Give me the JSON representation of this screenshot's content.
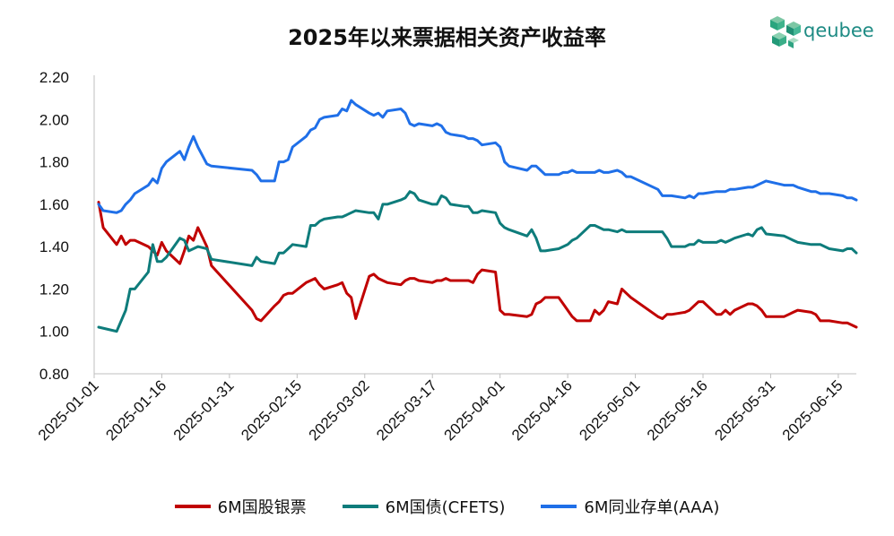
{
  "chart_data": {
    "type": "line",
    "title": "2025年以来票据相关资产收益率",
    "brand": "qeubee",
    "xlabel": "",
    "ylabel": "",
    "ylim": [
      0.8,
      2.2
    ],
    "xlim": [
      "2025-01-01",
      "2025-06-19"
    ],
    "y_ticks": [
      "0.80",
      "1.00",
      "1.20",
      "1.40",
      "1.60",
      "1.80",
      "2.00",
      "2.20"
    ],
    "x_ticks": [
      "2025-01-01",
      "2025-01-16",
      "2025-01-31",
      "2025-02-15",
      "2025-03-02",
      "2025-03-17",
      "2025-04-01",
      "2025-04-16",
      "2025-05-01",
      "2025-05-16",
      "2025-05-31",
      "2025-06-15"
    ],
    "grid": false,
    "legend_position": "bottom",
    "series": [
      {
        "name": "6M国股银票",
        "color": "#c00000",
        "x": [
          "2025-01-02",
          "2025-01-03",
          "2025-01-06",
          "2025-01-07",
          "2025-01-08",
          "2025-01-09",
          "2025-01-10",
          "2025-01-13",
          "2025-01-14",
          "2025-01-15",
          "2025-01-16",
          "2025-01-17",
          "2025-01-20",
          "2025-01-21",
          "2025-01-22",
          "2025-01-23",
          "2025-01-24",
          "2025-01-26",
          "2025-01-27",
          "2025-02-05",
          "2025-02-06",
          "2025-02-07",
          "2025-02-10",
          "2025-02-11",
          "2025-02-12",
          "2025-02-13",
          "2025-02-14",
          "2025-02-17",
          "2025-02-18",
          "2025-02-19",
          "2025-02-20",
          "2025-02-21",
          "2025-02-24",
          "2025-02-25",
          "2025-02-26",
          "2025-02-27",
          "2025-02-28",
          "2025-03-03",
          "2025-03-04",
          "2025-03-05",
          "2025-03-06",
          "2025-03-07",
          "2025-03-10",
          "2025-03-11",
          "2025-03-12",
          "2025-03-13",
          "2025-03-14",
          "2025-03-17",
          "2025-03-18",
          "2025-03-19",
          "2025-03-20",
          "2025-03-21",
          "2025-03-24",
          "2025-03-25",
          "2025-03-26",
          "2025-03-27",
          "2025-03-28",
          "2025-03-31",
          "2025-04-01",
          "2025-04-02",
          "2025-04-03",
          "2025-04-07",
          "2025-04-08",
          "2025-04-09",
          "2025-04-10",
          "2025-04-11",
          "2025-04-14",
          "2025-04-15",
          "2025-04-16",
          "2025-04-17",
          "2025-04-18",
          "2025-04-21",
          "2025-04-22",
          "2025-04-23",
          "2025-04-24",
          "2025-04-25",
          "2025-04-27",
          "2025-04-28",
          "2025-04-29",
          "2025-04-30",
          "2025-05-06",
          "2025-05-07",
          "2025-05-08",
          "2025-05-09",
          "2025-05-12",
          "2025-05-13",
          "2025-05-14",
          "2025-05-15",
          "2025-05-16",
          "2025-05-19",
          "2025-05-20",
          "2025-05-21",
          "2025-05-22",
          "2025-05-23",
          "2025-05-26",
          "2025-05-27",
          "2025-05-28",
          "2025-05-29",
          "2025-05-30",
          "2025-06-03",
          "2025-06-04",
          "2025-06-05",
          "2025-06-06",
          "2025-06-09",
          "2025-06-10",
          "2025-06-11",
          "2025-06-12",
          "2025-06-13",
          "2025-06-16",
          "2025-06-17",
          "2025-06-18",
          "2025-06-19"
        ],
        "values": [
          1.61,
          1.49,
          1.41,
          1.45,
          1.41,
          1.43,
          1.43,
          1.4,
          1.38,
          1.36,
          1.42,
          1.38,
          1.32,
          1.38,
          1.45,
          1.43,
          1.49,
          1.4,
          1.31,
          1.1,
          1.06,
          1.05,
          1.12,
          1.14,
          1.17,
          1.18,
          1.18,
          1.23,
          1.24,
          1.25,
          1.22,
          1.2,
          1.22,
          1.23,
          1.18,
          1.16,
          1.06,
          1.26,
          1.27,
          1.25,
          1.24,
          1.23,
          1.22,
          1.24,
          1.25,
          1.25,
          1.24,
          1.23,
          1.24,
          1.24,
          1.25,
          1.24,
          1.24,
          1.24,
          1.23,
          1.27,
          1.29,
          1.28,
          1.1,
          1.08,
          1.08,
          1.07,
          1.08,
          1.13,
          1.14,
          1.16,
          1.16,
          1.13,
          1.1,
          1.07,
          1.05,
          1.05,
          1.1,
          1.08,
          1.1,
          1.14,
          1.13,
          1.2,
          1.18,
          1.16,
          1.07,
          1.06,
          1.08,
          1.08,
          1.09,
          1.1,
          1.12,
          1.14,
          1.14,
          1.08,
          1.08,
          1.1,
          1.08,
          1.1,
          1.13,
          1.13,
          1.12,
          1.1,
          1.07,
          1.07,
          1.08,
          1.09,
          1.1,
          1.09,
          1.08,
          1.05,
          1.05,
          1.05,
          1.04,
          1.04,
          1.03,
          1.02
        ]
      },
      {
        "name": "6M国债(CFETS)",
        "color": "#0e7c7b",
        "x": [
          "2025-01-02",
          "2025-01-06",
          "2025-01-08",
          "2025-01-09",
          "2025-01-10",
          "2025-01-13",
          "2025-01-14",
          "2025-01-15",
          "2025-01-16",
          "2025-01-17",
          "2025-01-20",
          "2025-01-21",
          "2025-01-22",
          "2025-01-23",
          "2025-01-24",
          "2025-01-26",
          "2025-01-27",
          "2025-02-05",
          "2025-02-06",
          "2025-02-07",
          "2025-02-10",
          "2025-02-11",
          "2025-02-12",
          "2025-02-13",
          "2025-02-14",
          "2025-02-17",
          "2025-02-18",
          "2025-02-19",
          "2025-02-20",
          "2025-02-21",
          "2025-02-24",
          "2025-02-25",
          "2025-02-26",
          "2025-02-27",
          "2025-02-28",
          "2025-03-03",
          "2025-03-04",
          "2025-03-05",
          "2025-03-06",
          "2025-03-07",
          "2025-03-10",
          "2025-03-11",
          "2025-03-12",
          "2025-03-13",
          "2025-03-14",
          "2025-03-17",
          "2025-03-18",
          "2025-03-19",
          "2025-03-20",
          "2025-03-21",
          "2025-03-24",
          "2025-03-25",
          "2025-03-26",
          "2025-03-27",
          "2025-03-28",
          "2025-03-31",
          "2025-04-01",
          "2025-04-02",
          "2025-04-03",
          "2025-04-07",
          "2025-04-08",
          "2025-04-09",
          "2025-04-10",
          "2025-04-11",
          "2025-04-14",
          "2025-04-15",
          "2025-04-16",
          "2025-04-17",
          "2025-04-18",
          "2025-04-21",
          "2025-04-22",
          "2025-04-23",
          "2025-04-24",
          "2025-04-25",
          "2025-04-27",
          "2025-04-28",
          "2025-04-29",
          "2025-04-30",
          "2025-05-06",
          "2025-05-07",
          "2025-05-08",
          "2025-05-09",
          "2025-05-12",
          "2025-05-13",
          "2025-05-14",
          "2025-05-15",
          "2025-05-16",
          "2025-05-19",
          "2025-05-20",
          "2025-05-21",
          "2025-05-22",
          "2025-05-23",
          "2025-05-26",
          "2025-05-27",
          "2025-05-28",
          "2025-05-29",
          "2025-05-30",
          "2025-06-03",
          "2025-06-04",
          "2025-06-05",
          "2025-06-06",
          "2025-06-09",
          "2025-06-10",
          "2025-06-11",
          "2025-06-12",
          "2025-06-13",
          "2025-06-16",
          "2025-06-17",
          "2025-06-18",
          "2025-06-19"
        ],
        "values": [
          1.02,
          1.0,
          1.1,
          1.2,
          1.2,
          1.28,
          1.41,
          1.33,
          1.33,
          1.35,
          1.44,
          1.43,
          1.38,
          1.39,
          1.4,
          1.39,
          1.34,
          1.31,
          1.35,
          1.33,
          1.32,
          1.37,
          1.37,
          1.39,
          1.41,
          1.4,
          1.5,
          1.5,
          1.52,
          1.53,
          1.54,
          1.54,
          1.55,
          1.56,
          1.57,
          1.56,
          1.56,
          1.53,
          1.6,
          1.6,
          1.62,
          1.63,
          1.66,
          1.65,
          1.62,
          1.6,
          1.6,
          1.64,
          1.63,
          1.6,
          1.59,
          1.59,
          1.56,
          1.56,
          1.57,
          1.56,
          1.51,
          1.49,
          1.48,
          1.45,
          1.48,
          1.44,
          1.38,
          1.38,
          1.39,
          1.4,
          1.41,
          1.43,
          1.44,
          1.5,
          1.5,
          1.49,
          1.48,
          1.48,
          1.47,
          1.48,
          1.47,
          1.47,
          1.47,
          1.47,
          1.44,
          1.4,
          1.4,
          1.41,
          1.41,
          1.43,
          1.42,
          1.42,
          1.43,
          1.42,
          1.43,
          1.44,
          1.46,
          1.45,
          1.48,
          1.49,
          1.46,
          1.45,
          1.44,
          1.43,
          1.42,
          1.41,
          1.41,
          1.41,
          1.4,
          1.39,
          1.38,
          1.39,
          1.39,
          1.37
        ]
      },
      {
        "name": "6M同业存单(AAA)",
        "color": "#1f6fe8",
        "x": [
          "2025-01-02",
          "2025-01-03",
          "2025-01-06",
          "2025-01-07",
          "2025-01-08",
          "2025-01-09",
          "2025-01-10",
          "2025-01-13",
          "2025-01-14",
          "2025-01-15",
          "2025-01-16",
          "2025-01-17",
          "2025-01-20",
          "2025-01-21",
          "2025-01-22",
          "2025-01-23",
          "2025-01-24",
          "2025-01-26",
          "2025-01-27",
          "2025-02-05",
          "2025-02-06",
          "2025-02-07",
          "2025-02-10",
          "2025-02-11",
          "2025-02-12",
          "2025-02-13",
          "2025-02-14",
          "2025-02-17",
          "2025-02-18",
          "2025-02-19",
          "2025-02-20",
          "2025-02-21",
          "2025-02-24",
          "2025-02-25",
          "2025-02-26",
          "2025-02-27",
          "2025-02-28",
          "2025-03-03",
          "2025-03-04",
          "2025-03-05",
          "2025-03-06",
          "2025-03-07",
          "2025-03-10",
          "2025-03-11",
          "2025-03-12",
          "2025-03-13",
          "2025-03-14",
          "2025-03-17",
          "2025-03-18",
          "2025-03-19",
          "2025-03-20",
          "2025-03-21",
          "2025-03-24",
          "2025-03-25",
          "2025-03-26",
          "2025-03-27",
          "2025-03-28",
          "2025-03-31",
          "2025-04-01",
          "2025-04-02",
          "2025-04-03",
          "2025-04-07",
          "2025-04-08",
          "2025-04-09",
          "2025-04-10",
          "2025-04-11",
          "2025-04-14",
          "2025-04-15",
          "2025-04-16",
          "2025-04-17",
          "2025-04-18",
          "2025-04-21",
          "2025-04-22",
          "2025-04-23",
          "2025-04-24",
          "2025-04-25",
          "2025-04-27",
          "2025-04-28",
          "2025-04-29",
          "2025-04-30",
          "2025-05-06",
          "2025-05-07",
          "2025-05-08",
          "2025-05-09",
          "2025-05-12",
          "2025-05-13",
          "2025-05-14",
          "2025-05-15",
          "2025-05-16",
          "2025-05-19",
          "2025-05-20",
          "2025-05-21",
          "2025-05-22",
          "2025-05-23",
          "2025-05-26",
          "2025-05-27",
          "2025-05-28",
          "2025-05-29",
          "2025-05-30",
          "2025-06-03",
          "2025-06-04",
          "2025-06-05",
          "2025-06-06",
          "2025-06-09",
          "2025-06-10",
          "2025-06-11",
          "2025-06-12",
          "2025-06-13",
          "2025-06-16",
          "2025-06-17",
          "2025-06-18",
          "2025-06-19"
        ],
        "values": [
          1.6,
          1.57,
          1.56,
          1.57,
          1.6,
          1.62,
          1.65,
          1.69,
          1.72,
          1.7,
          1.77,
          1.8,
          1.85,
          1.81,
          1.87,
          1.92,
          1.87,
          1.79,
          1.78,
          1.76,
          1.74,
          1.71,
          1.71,
          1.8,
          1.8,
          1.81,
          1.87,
          1.92,
          1.95,
          1.96,
          2.0,
          2.01,
          2.02,
          2.05,
          2.04,
          2.09,
          2.07,
          2.03,
          2.02,
          2.03,
          2.01,
          2.04,
          2.05,
          2.03,
          1.98,
          1.97,
          1.98,
          1.97,
          1.98,
          1.97,
          1.94,
          1.93,
          1.92,
          1.91,
          1.91,
          1.9,
          1.88,
          1.89,
          1.87,
          1.8,
          1.78,
          1.76,
          1.78,
          1.78,
          1.76,
          1.74,
          1.74,
          1.75,
          1.75,
          1.76,
          1.75,
          1.75,
          1.75,
          1.76,
          1.75,
          1.75,
          1.76,
          1.75,
          1.73,
          1.73,
          1.67,
          1.64,
          1.64,
          1.64,
          1.63,
          1.64,
          1.63,
          1.65,
          1.65,
          1.66,
          1.66,
          1.66,
          1.67,
          1.67,
          1.68,
          1.68,
          1.69,
          1.7,
          1.71,
          1.69,
          1.69,
          1.69,
          1.68,
          1.66,
          1.66,
          1.65,
          1.65,
          1.65,
          1.64,
          1.63,
          1.63,
          1.62
        ]
      }
    ]
  }
}
